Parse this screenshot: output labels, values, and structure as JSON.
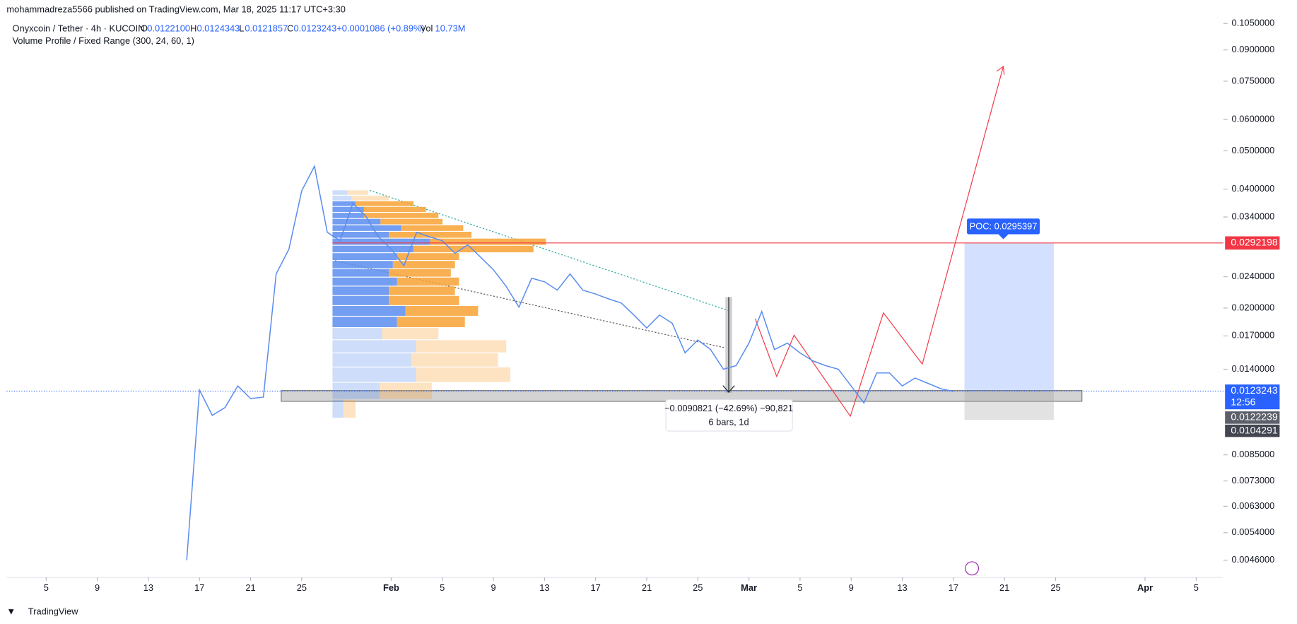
{
  "header": {
    "published": "mohammadreza5566 published on TradingView.com, Mar 18, 2025 11:17 UTC+3:30",
    "symbol": "Onyxcoin / Tether · 4h · KUCOIN",
    "o_label": "O",
    "o": "0.0122100",
    "h_label": "H",
    "h": "0.0124343",
    "l_label": "L",
    "l": "0.0121857",
    "c_label": "C",
    "c": "0.0123243",
    "change": "+0.0001086 (+0.89%)",
    "vol_label": "Vol",
    "vol": "10.73M",
    "indicator": "Volume Profile / Fixed Range (300, 24, 60, 1)"
  },
  "chart_data": {
    "type": "line",
    "color": "#5b8def",
    "log_scale": true,
    "x": [
      "01-16",
      "01-17",
      "01-18",
      "01-19",
      "01-20",
      "01-21",
      "01-22",
      "01-23",
      "01-24",
      "01-25",
      "01-26",
      "01-27",
      "01-28",
      "01-29",
      "01-30",
      "01-31",
      "02-01",
      "02-02",
      "02-03",
      "02-04",
      "02-05",
      "02-06",
      "02-07",
      "02-08",
      "02-09",
      "02-10",
      "02-11",
      "02-12",
      "02-13",
      "02-14",
      "02-15",
      "02-16",
      "02-17",
      "02-18",
      "02-19",
      "02-20",
      "02-21",
      "02-22",
      "02-23",
      "02-24",
      "02-25",
      "02-26",
      "02-27",
      "02-28",
      "03-01",
      "03-02",
      "03-03",
      "03-04",
      "03-05",
      "03-06",
      "03-07",
      "03-08",
      "03-09",
      "03-10",
      "03-11",
      "03-12",
      "03-13",
      "03-14",
      "03-15",
      "03-16",
      "03-17"
    ],
    "values": [
      0.0046,
      0.0124,
      0.0107,
      0.0112,
      0.0127,
      0.0118,
      0.0119,
      0.0244,
      0.0282,
      0.0396,
      0.0457,
      0.0311,
      0.0296,
      0.0368,
      0.0342,
      0.0303,
      0.0282,
      0.0256,
      0.0311,
      0.0303,
      0.0296,
      0.0275,
      0.0289,
      0.0269,
      0.025,
      0.0227,
      0.0201,
      0.0238,
      0.0233,
      0.0222,
      0.0244,
      0.0222,
      0.0217,
      0.0211,
      0.0206,
      0.0192,
      0.0178,
      0.0192,
      0.0183,
      0.0154,
      0.0166,
      0.0157,
      0.014,
      0.0143,
      0.0163,
      0.0196,
      0.0157,
      0.0163,
      0.0154,
      0.0147,
      0.0143,
      0.014,
      0.0127,
      0.0115,
      0.0137,
      0.0137,
      0.0127,
      0.0133,
      0.0129,
      0.0125,
      0.0123
    ],
    "xlim": [
      "01-02",
      "04-07"
    ],
    "xticks": [
      {
        "value": "01-05",
        "label": "5"
      },
      {
        "value": "01-09",
        "label": "9"
      },
      {
        "value": "01-13",
        "label": "13"
      },
      {
        "value": "01-17",
        "label": "17"
      },
      {
        "value": "01-21",
        "label": "21"
      },
      {
        "value": "01-25",
        "label": "25"
      },
      {
        "value": "02-01",
        "label": "Feb"
      },
      {
        "value": "02-05",
        "label": "5"
      },
      {
        "value": "02-09",
        "label": "9"
      },
      {
        "value": "02-13",
        "label": "13"
      },
      {
        "value": "02-17",
        "label": "17"
      },
      {
        "value": "02-21",
        "label": "21"
      },
      {
        "value": "02-25",
        "label": "25"
      },
      {
        "value": "03-01",
        "label": "Mar"
      },
      {
        "value": "03-05",
        "label": "5"
      },
      {
        "value": "03-09",
        "label": "9"
      },
      {
        "value": "03-13",
        "label": "13"
      },
      {
        "value": "03-17",
        "label": "17"
      },
      {
        "value": "03-21",
        "label": "21"
      },
      {
        "value": "03-25",
        "label": "25"
      },
      {
        "value": "04-01",
        "label": "Apr"
      },
      {
        "value": "04-05",
        "label": "5"
      }
    ],
    "ylim": [
      0.00416,
      0.1092
    ],
    "yticks": [
      {
        "value": 0.105,
        "label": "0.1050000"
      },
      {
        "value": 0.09,
        "label": "0.0900000"
      },
      {
        "value": 0.075,
        "label": "0.0750000"
      },
      {
        "value": 0.06,
        "label": "0.0600000"
      },
      {
        "value": 0.05,
        "label": "0.0500000"
      },
      {
        "value": 0.04,
        "label": "0.0400000"
      },
      {
        "value": 0.034,
        "label": "0.0340000"
      },
      {
        "value": 0.024,
        "label": "0.0240000"
      },
      {
        "value": 0.02,
        "label": "0.0200000"
      },
      {
        "value": 0.017,
        "label": "0.0170000"
      },
      {
        "value": 0.014,
        "label": "0.0140000"
      },
      {
        "value": 0.0085,
        "label": "0.0085000"
      },
      {
        "value": 0.0073,
        "label": "0.0073000"
      },
      {
        "value": 0.0063,
        "label": "0.0063000"
      },
      {
        "value": 0.0054,
        "label": "0.0054000"
      },
      {
        "value": 0.0046,
        "label": "0.0046000"
      }
    ],
    "volume_profile": {
      "bins_low": 0.0105,
      "bin_size": 0.001217,
      "up_color": "#5b8def",
      "down_color": "#f7a234",
      "value_area": [
        0.0178,
        0.0373
      ],
      "up": [
        13,
        57,
        101,
        95,
        101,
        60,
        78,
        88,
        68,
        68,
        78,
        68,
        73,
        78,
        98,
        118,
        68,
        83,
        58,
        38,
        38,
        28,
        23,
        18
      ],
      "down": [
        15,
        63,
        114,
        105,
        109,
        68,
        82,
        88,
        85,
        80,
        75,
        75,
        75,
        75,
        145,
        140,
        100,
        75,
        75,
        90,
        75,
        70,
        45,
        25
      ]
    },
    "poc_label": "POC: 0.0295397",
    "target": 0.0292198,
    "entry": 0.0123243,
    "countdown": "12:56",
    "entry_low": 0.0122239,
    "stop": 0.0104291,
    "measure": {
      "line1": "−0.0090821 (−42.69%) −90,821",
      "line2": "6 bars, 1d"
    }
  },
  "footer": "TradingView"
}
